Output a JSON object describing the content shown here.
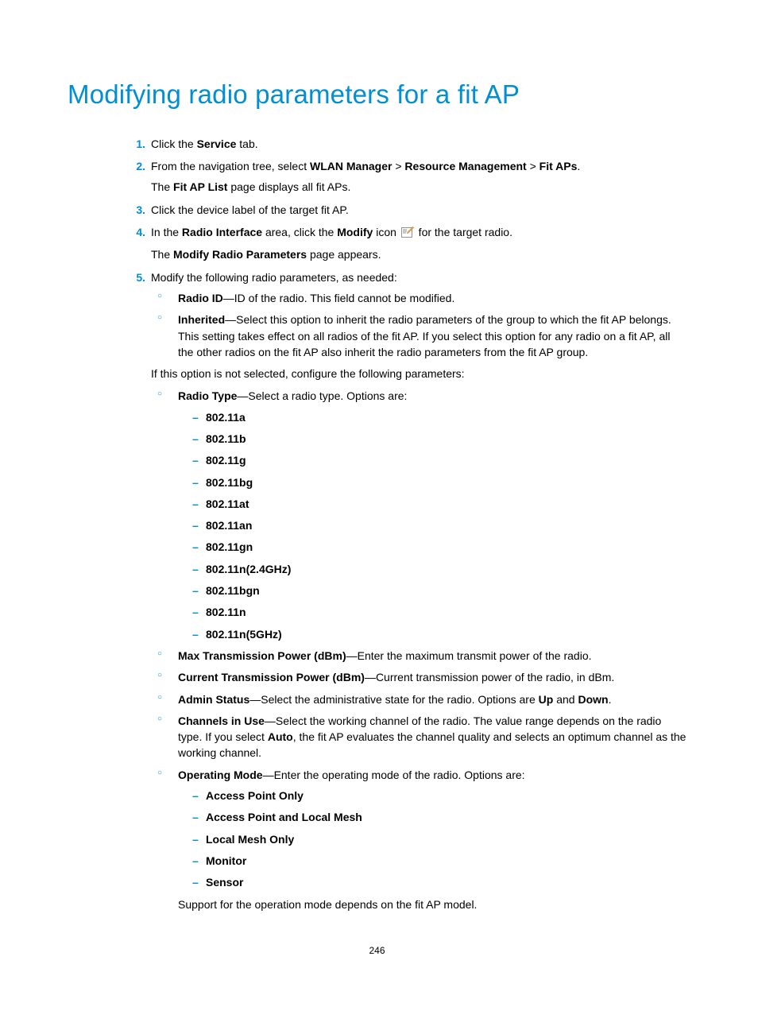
{
  "title": "Modifying radio parameters for a fit AP",
  "pageNumber": "246",
  "steps": [
    {
      "n": "1.",
      "paras": [
        {
          "runs": [
            {
              "t": "Click the "
            },
            {
              "t": "Service",
              "b": true
            },
            {
              "t": " tab."
            }
          ]
        }
      ]
    },
    {
      "n": "2.",
      "paras": [
        {
          "runs": [
            {
              "t": "From the navigation tree, select "
            },
            {
              "t": "WLAN Manager",
              "b": true
            },
            {
              "t": " > "
            },
            {
              "t": "Resource Management",
              "b": true
            },
            {
              "t": " > "
            },
            {
              "t": "Fit APs",
              "b": true
            },
            {
              "t": "."
            }
          ]
        },
        {
          "runs": [
            {
              "t": "The "
            },
            {
              "t": "Fit AP List",
              "b": true
            },
            {
              "t": " page displays all fit APs."
            }
          ]
        }
      ]
    },
    {
      "n": "3.",
      "paras": [
        {
          "runs": [
            {
              "t": "Click the device label of the target fit AP."
            }
          ]
        }
      ]
    },
    {
      "n": "4.",
      "paras": [
        {
          "runs": [
            {
              "t": "In the "
            },
            {
              "t": "Radio Interface",
              "b": true
            },
            {
              "t": " area, click the "
            },
            {
              "t": "Modify",
              "b": true
            },
            {
              "t": " icon "
            },
            {
              "icon": "modify"
            },
            {
              "t": " for the target radio."
            }
          ]
        },
        {
          "runs": [
            {
              "t": "The "
            },
            {
              "t": "Modify Radio Parameters",
              "b": true
            },
            {
              "t": " page appears."
            }
          ]
        }
      ]
    },
    {
      "n": "5.",
      "paras": [
        {
          "runs": [
            {
              "t": "Modify the following radio parameters, as needed:"
            }
          ]
        }
      ],
      "circle": [
        {
          "paras": [
            {
              "runs": [
                {
                  "t": "Radio ID",
                  "b": true
                },
                {
                  "t": "—ID of the radio. This field cannot be modified."
                }
              ]
            }
          ]
        },
        {
          "paras": [
            {
              "runs": [
                {
                  "t": "Inherited",
                  "b": true
                },
                {
                  "t": "—Select this option to inherit the radio parameters of the group to which the fit AP belongs. This setting takes effect on all radios of the fit AP. If you select this option for any radio on a fit AP, all the other radios on the fit AP also inherit the radio parameters from the fit AP group."
                }
              ]
            }
          ]
        }
      ],
      "after_circle_1": [
        {
          "runs": [
            {
              "t": "If this option is not selected, configure the following parameters:"
            }
          ]
        }
      ],
      "circle2": [
        {
          "paras": [
            {
              "runs": [
                {
                  "t": "Radio Type",
                  "b": true
                },
                {
                  "t": "—Select a radio type. Options are:"
                }
              ]
            }
          ],
          "dash": [
            "802.11a",
            "802.11b",
            "802.11g",
            "802.11bg",
            "802.11at",
            "802.11an",
            "802.11gn",
            "802.11n(2.4GHz)",
            "802.11bgn",
            "802.11n",
            "802.11n(5GHz)"
          ]
        },
        {
          "paras": [
            {
              "runs": [
                {
                  "t": "Max Transmission Power (dBm)",
                  "b": true
                },
                {
                  "t": "—Enter the maximum transmit power of the radio."
                }
              ]
            }
          ]
        },
        {
          "paras": [
            {
              "runs": [
                {
                  "t": "Current Transmission Power (dBm)",
                  "b": true
                },
                {
                  "t": "—Current transmission power of the radio, in dBm."
                }
              ]
            }
          ]
        },
        {
          "paras": [
            {
              "runs": [
                {
                  "t": "Admin Status",
                  "b": true
                },
                {
                  "t": "—Select the administrative state for the radio. Options are "
                },
                {
                  "t": "Up",
                  "b": true
                },
                {
                  "t": " and "
                },
                {
                  "t": "Down",
                  "b": true
                },
                {
                  "t": "."
                }
              ]
            }
          ]
        },
        {
          "paras": [
            {
              "runs": [
                {
                  "t": "Channels in Use",
                  "b": true
                },
                {
                  "t": "—Select the working channel of the radio. The value range depends on the radio type. If you select "
                },
                {
                  "t": "Auto",
                  "b": true
                },
                {
                  "t": ", the fit AP evaluates the channel quality and selects an optimum channel as the working channel."
                }
              ]
            }
          ]
        },
        {
          "paras": [
            {
              "runs": [
                {
                  "t": "Operating Mode",
                  "b": true
                },
                {
                  "t": "—Enter the operating mode of the radio. Options are:"
                }
              ]
            }
          ],
          "dash": [
            "Access Point Only",
            "Access Point and Local Mesh",
            "Local Mesh Only",
            "Monitor",
            "Sensor"
          ],
          "after_dash": [
            {
              "runs": [
                {
                  "t": "Support for the operation mode depends on the fit AP model."
                }
              ]
            }
          ]
        }
      ]
    }
  ]
}
